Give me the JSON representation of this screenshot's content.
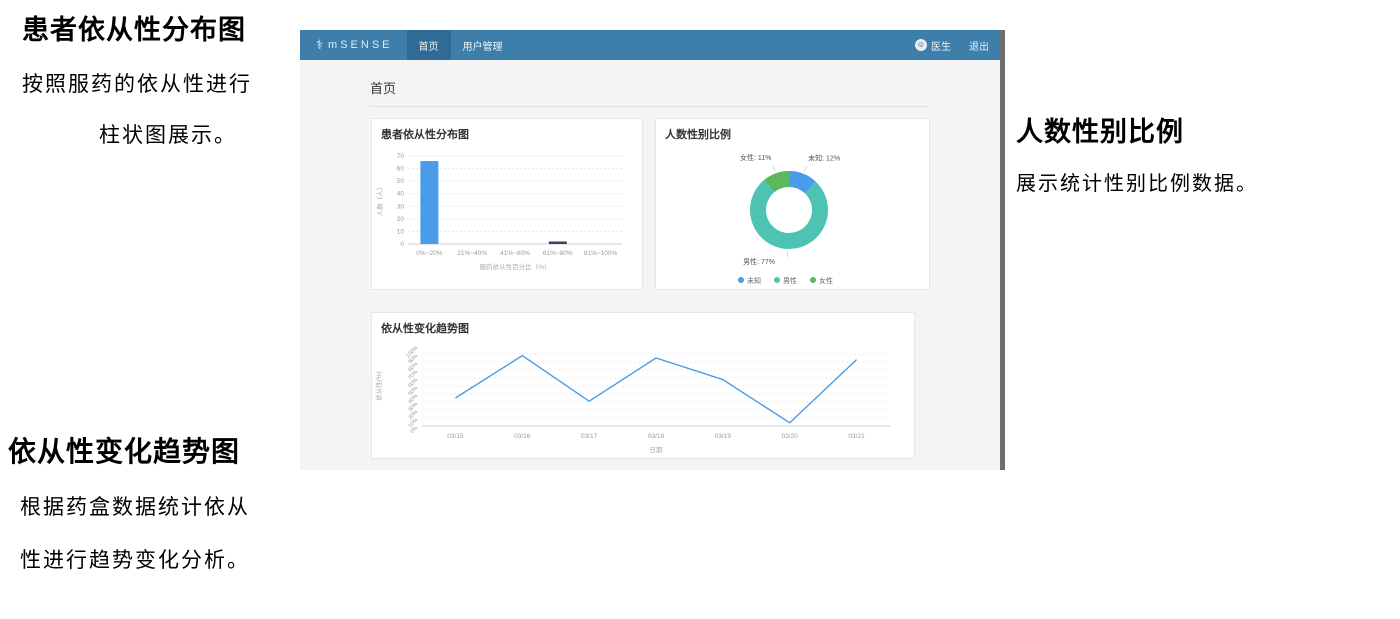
{
  "annotations": {
    "left_top": {
      "title": "患者依从性分布图",
      "line1": "按照服药的依从性进行",
      "line2": "柱状图展示。"
    },
    "left_bottom": {
      "title": "依从性变化趋势图",
      "line1": "根据药盒数据统计依从",
      "line2": "性进行趋势变化分析。"
    },
    "right": {
      "title": "人数性别比例",
      "line1": "展示统计性别比例数据。"
    }
  },
  "app": {
    "navbar": {
      "brand": "mSENSE",
      "brand_icon": "medical-caduceus",
      "tabs": [
        {
          "label": "首页",
          "active": true
        },
        {
          "label": "用户管理",
          "active": false
        }
      ],
      "user": "医生",
      "logout": "退出",
      "accent_color": "#3d7eab",
      "active_tab_color": "#2f6b96"
    },
    "page_title": "首页"
  },
  "chart_data": [
    {
      "type": "bar",
      "title": "患者依从性分布图",
      "categories": [
        "0%~20%",
        "21%~40%",
        "41%~60%",
        "61%~80%",
        "81%~100%"
      ],
      "values": [
        66,
        0,
        0,
        2,
        0
      ],
      "bar_colors": [
        "#4a9cea",
        "#4a9cea",
        "#4a9cea",
        "#344563",
        "#4a9cea"
      ],
      "xlabel": "服药依从性百分比（%）",
      "ylabel": "人数（人）",
      "ylim": [
        0,
        70
      ],
      "ytick_step": 10,
      "grid": "dashed"
    },
    {
      "type": "pie",
      "title": "人数性别比例",
      "slices": [
        {
          "name": "未知",
          "value": 12,
          "color": "#4a9cea",
          "label": "未知: 12%"
        },
        {
          "name": "男性",
          "value": 77,
          "color": "#4ec3b4",
          "label": "男性: 77%"
        },
        {
          "name": "女性",
          "value": 11,
          "color": "#5cb85c",
          "label": "女性: 11%"
        }
      ],
      "donut": true,
      "legend_position": "bottom"
    },
    {
      "type": "line",
      "title": "依从性变化趋势图",
      "x": [
        "03/15",
        "03/16",
        "03/17",
        "03/18",
        "03/19",
        "03/20",
        "03/21"
      ],
      "values": [
        35,
        88,
        31,
        85,
        58,
        4,
        83
      ],
      "line_color": "#4a9cea",
      "xlabel": "日期",
      "ylabel": "依从性(%)",
      "ylim": [
        0,
        100
      ],
      "ytick_step": 10,
      "grid": "dashed"
    }
  ]
}
